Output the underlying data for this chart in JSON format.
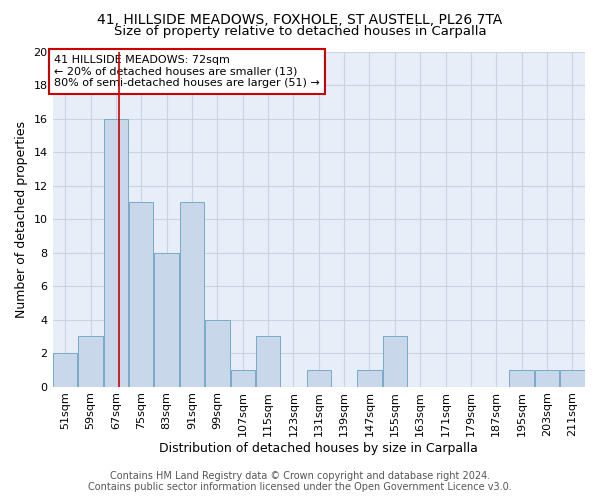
{
  "title_line1": "41, HILLSIDE MEADOWS, FOXHOLE, ST AUSTELL, PL26 7TA",
  "title_line2": "Size of property relative to detached houses in Carpalla",
  "xlabel": "Distribution of detached houses by size in Carpalla",
  "ylabel": "Number of detached properties",
  "bin_labels": [
    "51sqm",
    "59sqm",
    "67sqm",
    "75sqm",
    "83sqm",
    "91sqm",
    "99sqm",
    "107sqm",
    "115sqm",
    "123sqm",
    "131sqm",
    "139sqm",
    "147sqm",
    "155sqm",
    "163sqm",
    "171sqm",
    "179sqm",
    "187sqm",
    "195sqm",
    "203sqm",
    "211sqm"
  ],
  "bin_starts": [
    51,
    59,
    67,
    75,
    83,
    91,
    99,
    107,
    115,
    123,
    131,
    139,
    147,
    155,
    163,
    171,
    179,
    187,
    195,
    203,
    211
  ],
  "bin_width": 8,
  "bar_heights": [
    2,
    3,
    16,
    11,
    8,
    11,
    4,
    1,
    3,
    0,
    1,
    0,
    1,
    3,
    0,
    0,
    0,
    0,
    1,
    1,
    1
  ],
  "bar_color": "#c8d8ea",
  "bar_edge_color": "#7aaac8",
  "grid_color": "#c8d4e4",
  "background_color": "#e8eef8",
  "red_line_x": 72,
  "annotation_text": "41 HILLSIDE MEADOWS: 72sqm\n← 20% of detached houses are smaller (13)\n80% of semi-detached houses are larger (51) →",
  "annotation_box_color": "#ffffff",
  "annotation_border_color": "#cc0000",
  "ylim": [
    0,
    20
  ],
  "yticks": [
    0,
    2,
    4,
    6,
    8,
    10,
    12,
    14,
    16,
    18,
    20
  ],
  "footer_line1": "Contains HM Land Registry data © Crown copyright and database right 2024.",
  "footer_line2": "Contains public sector information licensed under the Open Government Licence v3.0.",
  "title_fontsize": 10,
  "subtitle_fontsize": 9.5,
  "axis_label_fontsize": 9,
  "tick_fontsize": 8,
  "annotation_fontsize": 8,
  "footer_fontsize": 7
}
